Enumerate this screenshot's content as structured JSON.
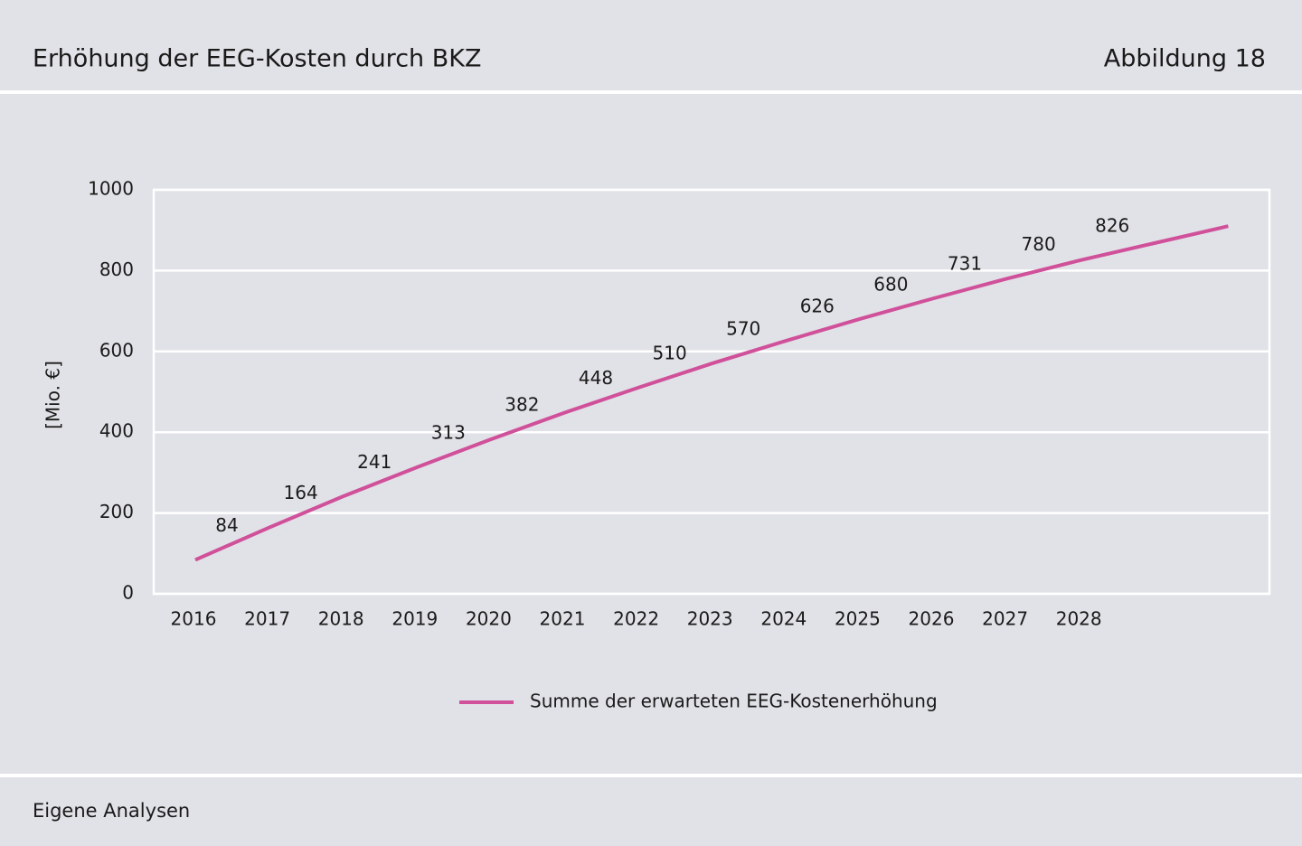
{
  "header": {
    "title": "Erhöhung der EEG-Kosten durch BKZ",
    "figure": "Abbildung 18"
  },
  "footer": {
    "source": "Eigene Analysen"
  },
  "chart_data": {
    "type": "line",
    "y_label": "[Mio. €]",
    "categories": [
      "2016",
      "2017",
      "2018",
      "2019",
      "2020",
      "2021",
      "2022",
      "2023",
      "2024",
      "2025",
      "2026",
      "2027",
      "2028",
      null,
      null
    ],
    "series": [
      {
        "name": "Summe der erwarteten EEG-Kostenerhöhung",
        "color": "#d0509a",
        "values": [
          84,
          164,
          241,
          313,
          382,
          448,
          510,
          570,
          626,
          680,
          731,
          780,
          826,
          868,
          910
        ]
      }
    ],
    "ylim": [
      0,
      1000
    ],
    "yticks": [
      0,
      200,
      400,
      600,
      800,
      1000
    ],
    "grid": true,
    "legend": "bottom"
  }
}
